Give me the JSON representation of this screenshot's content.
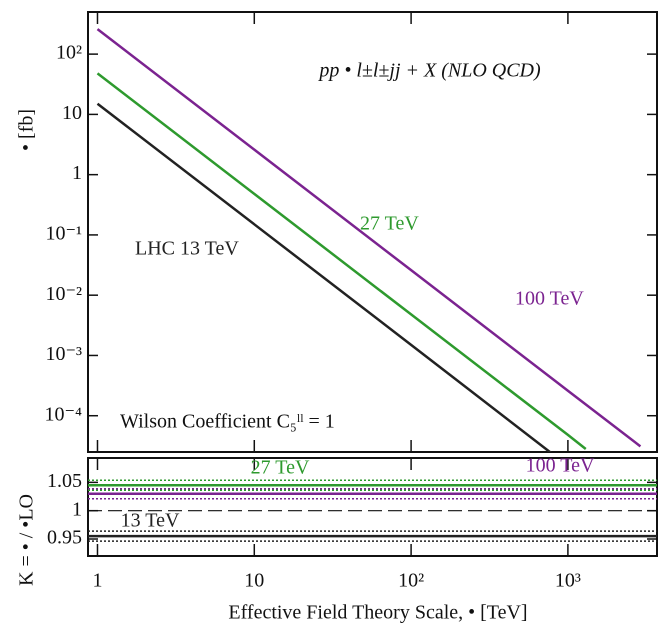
{
  "chart_data": [
    {
      "type": "line",
      "log_x": true,
      "log_y": true,
      "annotation": "pp • l±l±jj + X  (NLO QCD)",
      "note": "Wilson Coefficient C₅ˡˡ = 1",
      "y_label": "• [fb]",
      "xlim": [
        0.87,
        3700
      ],
      "ylim": [
        2.5e-05,
        500
      ],
      "yticks": [
        {
          "value": 100,
          "label": "10²"
        },
        10,
        1,
        {
          "value": 0.1,
          "label": "10⁻¹"
        },
        {
          "value": 0.01,
          "label": "10⁻²"
        },
        {
          "value": 0.001,
          "label": "10⁻³"
        },
        {
          "value": 0.0001,
          "label": "10⁻⁴"
        }
      ],
      "series": [
        {
          "name": "LHC 13 TeV",
          "color": "#222222",
          "x": [
            1,
            10,
            100,
            800
          ],
          "values": [
            15,
            0.15,
            0.0015,
            2.3e-05
          ]
        },
        {
          "name": "27 TeV",
          "color": "#2e9a2e",
          "x": [
            1,
            10,
            100,
            1000,
            1300
          ],
          "values": [
            48,
            0.48,
            0.0048,
            4.8e-05,
            2.8e-05
          ]
        },
        {
          "name": "100 TeV",
          "color": "#7b2390",
          "x": [
            1,
            10,
            100,
            1000,
            2900
          ],
          "values": [
            260,
            2.6,
            0.026,
            0.00026,
            3.1e-05
          ]
        }
      ]
    },
    {
      "type": "line",
      "log_x": true,
      "y_label": "K = • / •LO",
      "x_label": "Effective Field Theory Scale, • [TeV]",
      "xlim": [
        0.87,
        3700
      ],
      "ylim": [
        0.92,
        1.093
      ],
      "xticks": [
        1,
        10,
        {
          "value": 100,
          "label": "10²"
        },
        {
          "value": 1000,
          "label": "10³"
        }
      ],
      "yticks": [
        1.05,
        1,
        0.95
      ],
      "hline": 1,
      "series": [
        {
          "name": "27 TeV",
          "color": "#2e9a2e",
          "x": [
            0.87,
            3700
          ],
          "values": [
            1.045,
            1.045
          ]
        },
        {
          "name": "100 TeV",
          "color": "#7b2390",
          "x": [
            0.87,
            3700
          ],
          "values": [
            1.03,
            1.03
          ]
        },
        {
          "name": "13 TeV",
          "color": "#222222",
          "x": [
            0.87,
            3700
          ],
          "values": [
            0.955,
            0.955
          ]
        }
      ]
    }
  ]
}
